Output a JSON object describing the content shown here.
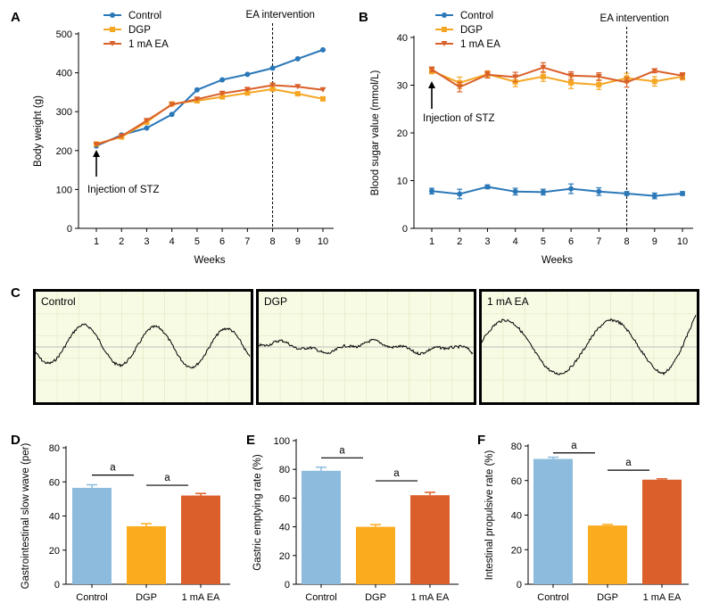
{
  "colors": {
    "control": "#2b78b8",
    "dgp": "#f5a623",
    "ea": "#d9602a",
    "bar_control": "#8dbbdd",
    "bar_dgp": "#fbac1e",
    "bar_ea": "#db5f2a",
    "trace_bg": "#f7fbe4",
    "trace_grid": "#e4ecc8"
  },
  "panels": {
    "A": {
      "letter": "A"
    },
    "B": {
      "letter": "B"
    },
    "C": {
      "letter": "C"
    },
    "D": {
      "letter": "D"
    },
    "E": {
      "letter": "E"
    },
    "F": {
      "letter": "F"
    }
  },
  "traces": {
    "labels": [
      "Control",
      "DGP",
      "1 mA EA"
    ]
  },
  "chart_data": [
    {
      "id": "A",
      "type": "line",
      "title": "",
      "xlabel": "Weeks",
      "ylabel": "Body weight (g)",
      "x": [
        1,
        2,
        3,
        4,
        5,
        6,
        7,
        8,
        9,
        10
      ],
      "ylim": [
        0,
        500
      ],
      "yticks": [
        0,
        100,
        200,
        300,
        400,
        500
      ],
      "series": [
        {
          "name": "Control",
          "marker": "circle",
          "values": [
            212,
            240,
            258,
            293,
            356,
            382,
            396,
            412,
            436,
            459
          ]
        },
        {
          "name": "DGP",
          "marker": "square",
          "values": [
            217,
            235,
            273,
            320,
            328,
            338,
            348,
            358,
            346,
            333
          ]
        },
        {
          "name": "1 mA EA",
          "marker": "triangle",
          "values": [
            215,
            237,
            277,
            318,
            332,
            347,
            357,
            368,
            364,
            356
          ]
        }
      ],
      "annotations": {
        "intervention": "EA intervention",
        "injection": "Injection of STZ",
        "intervention_week": 8,
        "injection_week": 1
      },
      "legend": "top-left"
    },
    {
      "id": "B",
      "type": "line",
      "title": "",
      "xlabel": "Weeks",
      "ylabel": "Blood sugar value (mmol/L)",
      "x": [
        1,
        2,
        3,
        4,
        5,
        6,
        7,
        8,
        9,
        10
      ],
      "ylim": [
        0,
        40
      ],
      "yticks": [
        0,
        10,
        20,
        30,
        40
      ],
      "series": [
        {
          "name": "Control",
          "marker": "circle",
          "values": [
            7.8,
            7.2,
            8.7,
            7.7,
            7.6,
            8.3,
            7.7,
            7.3,
            6.8,
            7.3
          ],
          "errors": [
            0.6,
            1.0,
            0.4,
            0.7,
            0.6,
            1.0,
            0.8,
            0.4,
            0.6,
            0.4
          ]
        },
        {
          "name": "DGP",
          "marker": "square",
          "values": [
            33.0,
            30.5,
            32.3,
            30.7,
            31.8,
            30.5,
            30.1,
            31.5,
            30.8,
            31.8
          ],
          "errors": [
            0.6,
            1.2,
            0.7,
            1.0,
            1.0,
            1.2,
            1.0,
            1.0,
            1.0,
            0.7
          ]
        },
        {
          "name": "1 mA EA",
          "marker": "triangle",
          "values": [
            33.3,
            29.6,
            32.2,
            31.7,
            33.7,
            32.0,
            31.8,
            30.6,
            33.0,
            32.0
          ],
          "errors": [
            0.5,
            1.0,
            0.7,
            1.0,
            1.0,
            0.8,
            0.8,
            1.0,
            0.4,
            0.6
          ]
        }
      ],
      "annotations": {
        "intervention": "EA intervention",
        "injection": "Injection of STZ",
        "intervention_week": 8,
        "injection_week": 1
      },
      "legend": "top-left"
    },
    {
      "id": "D",
      "type": "bar",
      "title": "",
      "xlabel": "",
      "ylabel": "Gastrointestinal slow wave (per)",
      "categories": [
        "Control",
        "DGP",
        "1 mA EA"
      ],
      "values": [
        56.5,
        34.0,
        52.0
      ],
      "errors": [
        1.8,
        1.5,
        1.2
      ],
      "ylim": [
        0,
        80
      ],
      "yticks": [
        0,
        20,
        40,
        60,
        80
      ],
      "significance": [
        {
          "from": 0,
          "to": 1,
          "label": "a",
          "y": 64
        },
        {
          "from": 1,
          "to": 2,
          "label": "a",
          "y": 58
        }
      ]
    },
    {
      "id": "E",
      "type": "bar",
      "title": "",
      "xlabel": "",
      "ylabel": "Gastric emptying rate (%)",
      "categories": [
        "Control",
        "DGP",
        "1 mA EA"
      ],
      "values": [
        79.0,
        40.0,
        62.0
      ],
      "errors": [
        2.5,
        1.5,
        2.0
      ],
      "ylim": [
        0,
        100
      ],
      "yticks": [
        0,
        20,
        40,
        60,
        80,
        100
      ],
      "significance": [
        {
          "from": 0,
          "to": 1,
          "label": "a",
          "y": 88
        },
        {
          "from": 1,
          "to": 2,
          "label": "a",
          "y": 72
        }
      ]
    },
    {
      "id": "F",
      "type": "bar",
      "title": "",
      "xlabel": "",
      "ylabel": "Intestinal propulsive rate (%)",
      "categories": [
        "Control",
        "DGP",
        "1 mA EA"
      ],
      "values": [
        72.5,
        34.0,
        60.5
      ],
      "errors": [
        1.0,
        0.6,
        0.5
      ],
      "ylim": [
        0,
        80
      ],
      "yticks": [
        0,
        20,
        40,
        60,
        80
      ],
      "significance": [
        {
          "from": 0,
          "to": 1,
          "label": "a",
          "y": 76
        },
        {
          "from": 1,
          "to": 2,
          "label": "a",
          "y": 66
        }
      ]
    }
  ]
}
